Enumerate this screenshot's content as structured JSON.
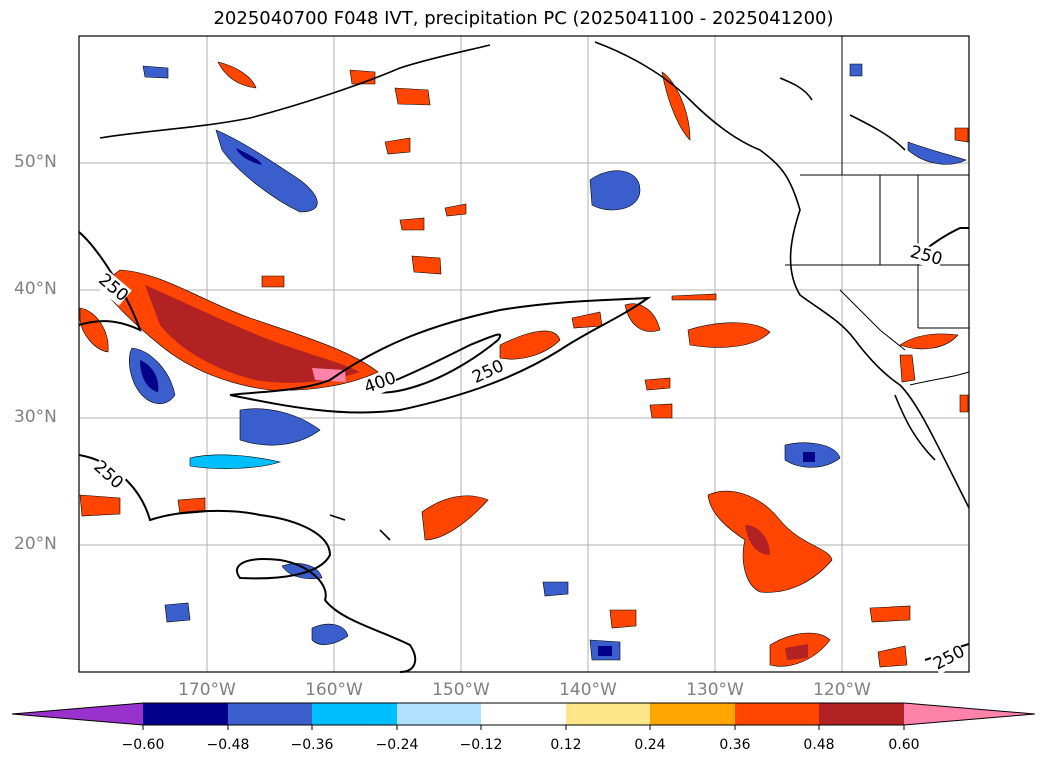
{
  "title": "2025040700 F048 IVT, precipitation PC (2025041100 - 2025041200)",
  "map": {
    "lon_labels": [
      "170°W",
      "160°W",
      "150°W",
      "140°W",
      "130°W",
      "120°W"
    ],
    "lat_labels": [
      "50°N",
      "40°N",
      "30°N",
      "20°N"
    ],
    "contour_labels": [
      "250",
      "250",
      "400",
      "250",
      "250",
      "250"
    ]
  },
  "colorbar": {
    "ticks": [
      "−0.60",
      "−0.48",
      "−0.36",
      "−0.24",
      "−0.12",
      "0.12",
      "0.24",
      "0.36",
      "0.48",
      "0.60"
    ],
    "colors": [
      "#9932cc",
      "#00008b",
      "#3a5fcd",
      "#00bfff",
      "#b0e2ff",
      "#ffffff",
      "#fde68a",
      "#ffa500",
      "#ff4500",
      "#b22222",
      "#ff82ab"
    ]
  }
}
